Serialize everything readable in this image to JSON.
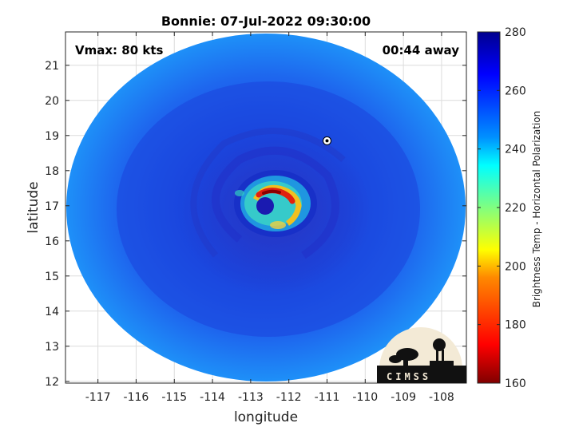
{
  "chart_data": {
    "type": "heatmap",
    "title": "Bonnie: 07-Jul-2022 09:30:00",
    "xlabel": "longitude",
    "ylabel": "latitude",
    "xlim": [
      -117.85,
      -107.35
    ],
    "ylim": [
      11.95,
      21.95
    ],
    "xticks": [
      -117,
      -116,
      -115,
      -114,
      -113,
      -112,
      -111,
      -110,
      -109,
      -108
    ],
    "yticks": [
      12,
      13,
      14,
      15,
      16,
      17,
      18,
      19,
      20,
      21
    ],
    "grid": true,
    "annotations": {
      "vmax": "Vmax: 80 kts",
      "time_away": "00:44 away"
    },
    "storm_center": {
      "lon": -112.7,
      "lat": 17.1
    },
    "swath_center": {
      "lon": -112.6,
      "lat": 16.95
    },
    "marker": {
      "lon": -111.0,
      "lat": 18.85
    },
    "colorbar": {
      "label": "Brightness Temp - Horizontal Polarization",
      "min": 160,
      "max": 280,
      "ticks": [
        160,
        180,
        200,
        220,
        240,
        260,
        280
      ],
      "colormap": "jet"
    }
  },
  "logo": {
    "text": "CIMSS"
  },
  "colors": {
    "swath_base": "#1e6ef0",
    "eye_warm": "#e01010",
    "band": "#2030c8"
  }
}
